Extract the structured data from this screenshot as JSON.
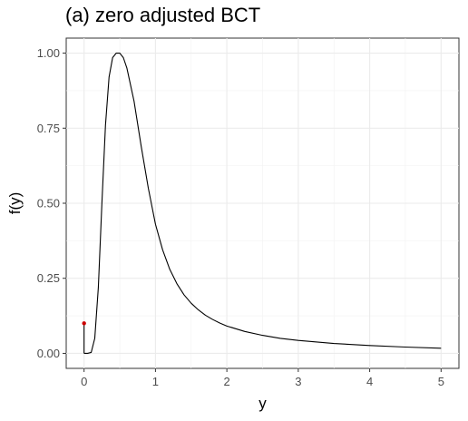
{
  "chart_data": {
    "type": "line",
    "title": "(a) zero adjusted BCT",
    "xlabel": "y",
    "ylabel": "f(y)",
    "xlim": [
      -0.25,
      5.25
    ],
    "ylim": [
      -0.05,
      1.05
    ],
    "x_ticks": [
      0,
      1,
      2,
      3,
      4,
      5
    ],
    "x_tick_labels": [
      "0",
      "1",
      "2",
      "3",
      "4",
      "5"
    ],
    "y_ticks": [
      0.0,
      0.25,
      0.5,
      0.75,
      1.0
    ],
    "y_tick_labels": [
      "0.00",
      "0.25",
      "0.50",
      "0.75",
      "1.00"
    ],
    "grid": true,
    "series": [
      {
        "color": "#000000",
        "x": [
          0.0,
          0.05,
          0.1,
          0.15,
          0.2,
          0.25,
          0.3,
          0.35,
          0.4,
          0.45,
          0.5,
          0.55,
          0.6,
          0.7,
          0.8,
          0.9,
          1.0,
          1.1,
          1.2,
          1.3,
          1.4,
          1.5,
          1.6,
          1.7,
          1.8,
          1.9,
          2.0,
          2.25,
          2.5,
          2.75,
          3.0,
          3.5,
          4.0,
          4.5,
          5.0
        ],
        "y": [
          0.0,
          0.0,
          0.003,
          0.05,
          0.22,
          0.5,
          0.76,
          0.92,
          0.985,
          1.0,
          1.0,
          0.985,
          0.95,
          0.84,
          0.69,
          0.55,
          0.43,
          0.345,
          0.28,
          0.232,
          0.195,
          0.167,
          0.145,
          0.127,
          0.113,
          0.101,
          0.091,
          0.073,
          0.06,
          0.05,
          0.043,
          0.033,
          0.026,
          0.021,
          0.017
        ]
      }
    ],
    "point_mass": {
      "x": 0,
      "y": 0.1,
      "color": "#cc0000"
    }
  }
}
